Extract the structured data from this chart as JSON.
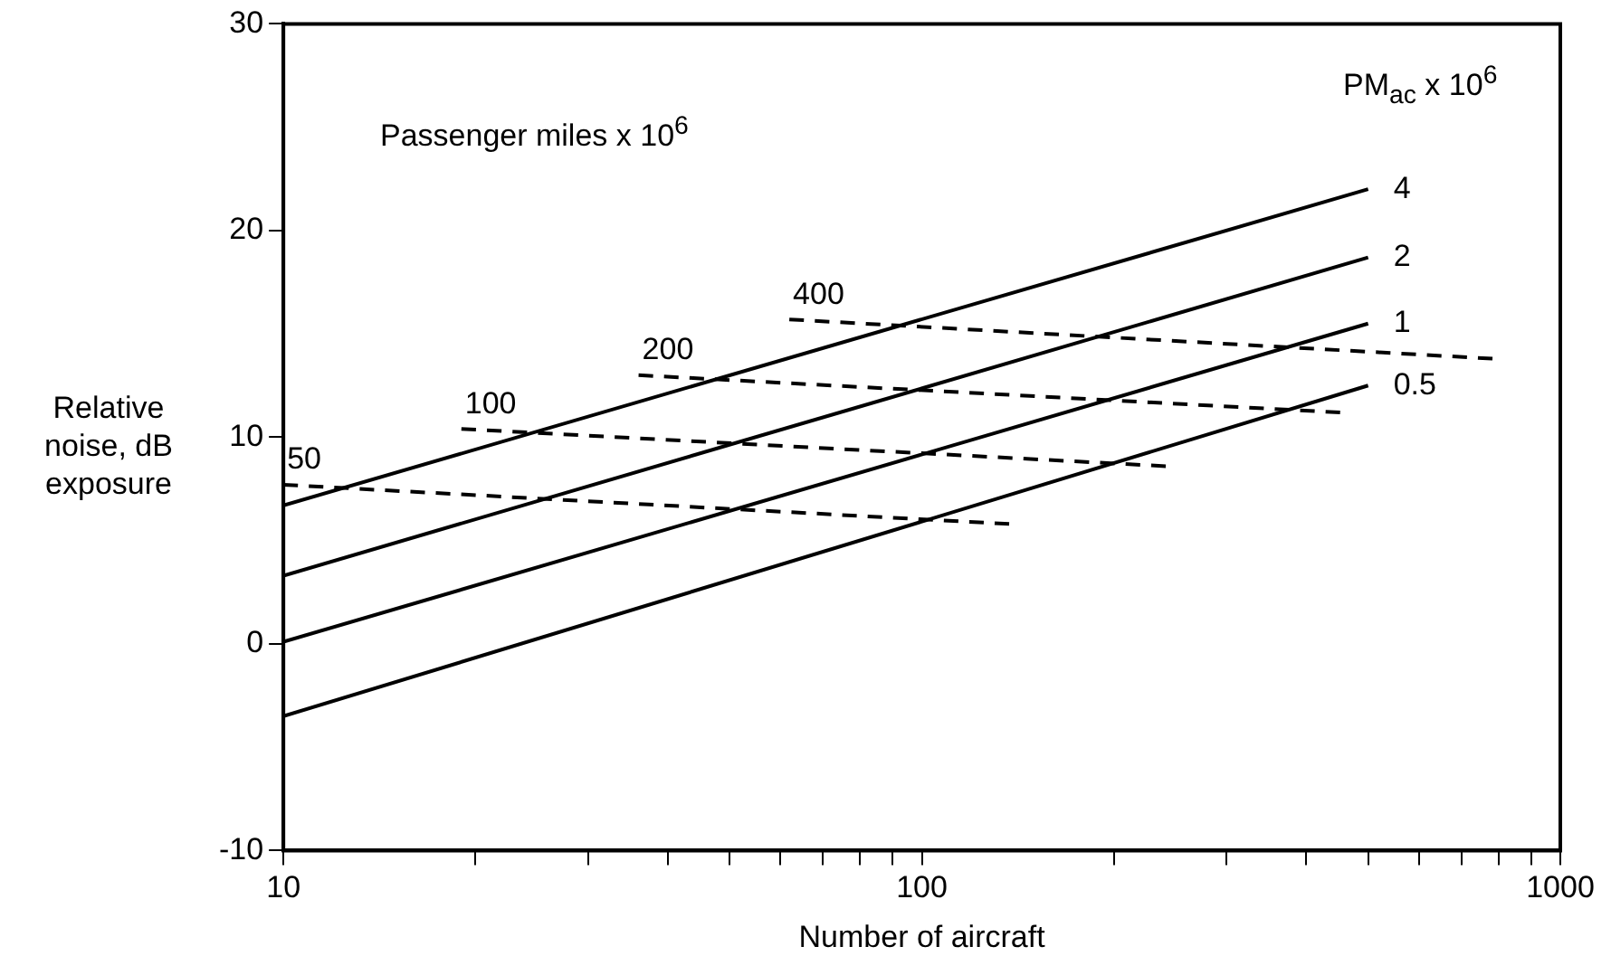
{
  "chart_data": {
    "type": "line",
    "xlabel": "Number of aircraft",
    "ylabel": "Relative noise, dB exposure",
    "log": "x",
    "xlim": [
      10,
      1000
    ],
    "ylim": [
      -10,
      30
    ],
    "xticks": [
      10,
      {
        "value": 20,
        "label": null
      },
      {
        "value": 30,
        "label": null
      },
      {
        "value": 40,
        "label": null
      },
      {
        "value": 50,
        "label": null
      },
      {
        "value": 60,
        "label": null
      },
      {
        "value": 70,
        "label": null
      },
      {
        "value": 80,
        "label": null
      },
      {
        "value": 90,
        "label": null
      },
      100,
      {
        "value": 200,
        "label": null
      },
      {
        "value": 300,
        "label": null
      },
      {
        "value": 400,
        "label": null
      },
      {
        "value": 500,
        "label": null
      },
      {
        "value": 600,
        "label": null
      },
      {
        "value": 700,
        "label": null
      },
      {
        "value": 800,
        "label": null
      },
      {
        "value": 900,
        "label": null
      },
      1000
    ],
    "yticks": [
      -10,
      0,
      10,
      20,
      30
    ],
    "grid": false,
    "legend": false,
    "marker": "none",
    "annotations": [
      "Passenger miles x 10$^{6}$",
      "PM$_{ac}$ x 10$^{6}$"
    ],
    "series": [
      {
        "name": "4",
        "color": "#000000",
        "line_style": "solid",
        "x": [
          10,
          500
        ],
        "values": [
          6.7,
          22.0
        ]
      },
      {
        "name": "2",
        "color": "#000000",
        "line_style": "solid",
        "x": [
          10,
          500
        ],
        "values": [
          3.3,
          18.7
        ]
      },
      {
        "name": "1",
        "color": "#000000",
        "line_style": "solid",
        "x": [
          10,
          500
        ],
        "values": [
          0.1,
          15.5
        ]
      },
      {
        "name": "0.5",
        "color": "#000000",
        "line_style": "solid",
        "x": [
          10,
          500
        ],
        "values": [
          -3.5,
          12.5
        ]
      },
      {
        "name": "50",
        "color": "#000000",
        "line_style": "dashed",
        "x": [
          10,
          137
        ],
        "values": [
          7.7,
          5.8
        ]
      },
      {
        "name": "100",
        "color": "#000000",
        "line_style": "dashed",
        "x": [
          19,
          241
        ],
        "values": [
          10.4,
          8.6
        ]
      },
      {
        "name": "200",
        "color": "#000000",
        "line_style": "dashed",
        "x": [
          36,
          452
        ],
        "values": [
          13.0,
          11.2
        ]
      },
      {
        "name": "400",
        "color": "#000000",
        "line_style": "dashed",
        "x": [
          62,
          783
        ],
        "values": [
          15.7,
          13.8
        ]
      }
    ]
  }
}
